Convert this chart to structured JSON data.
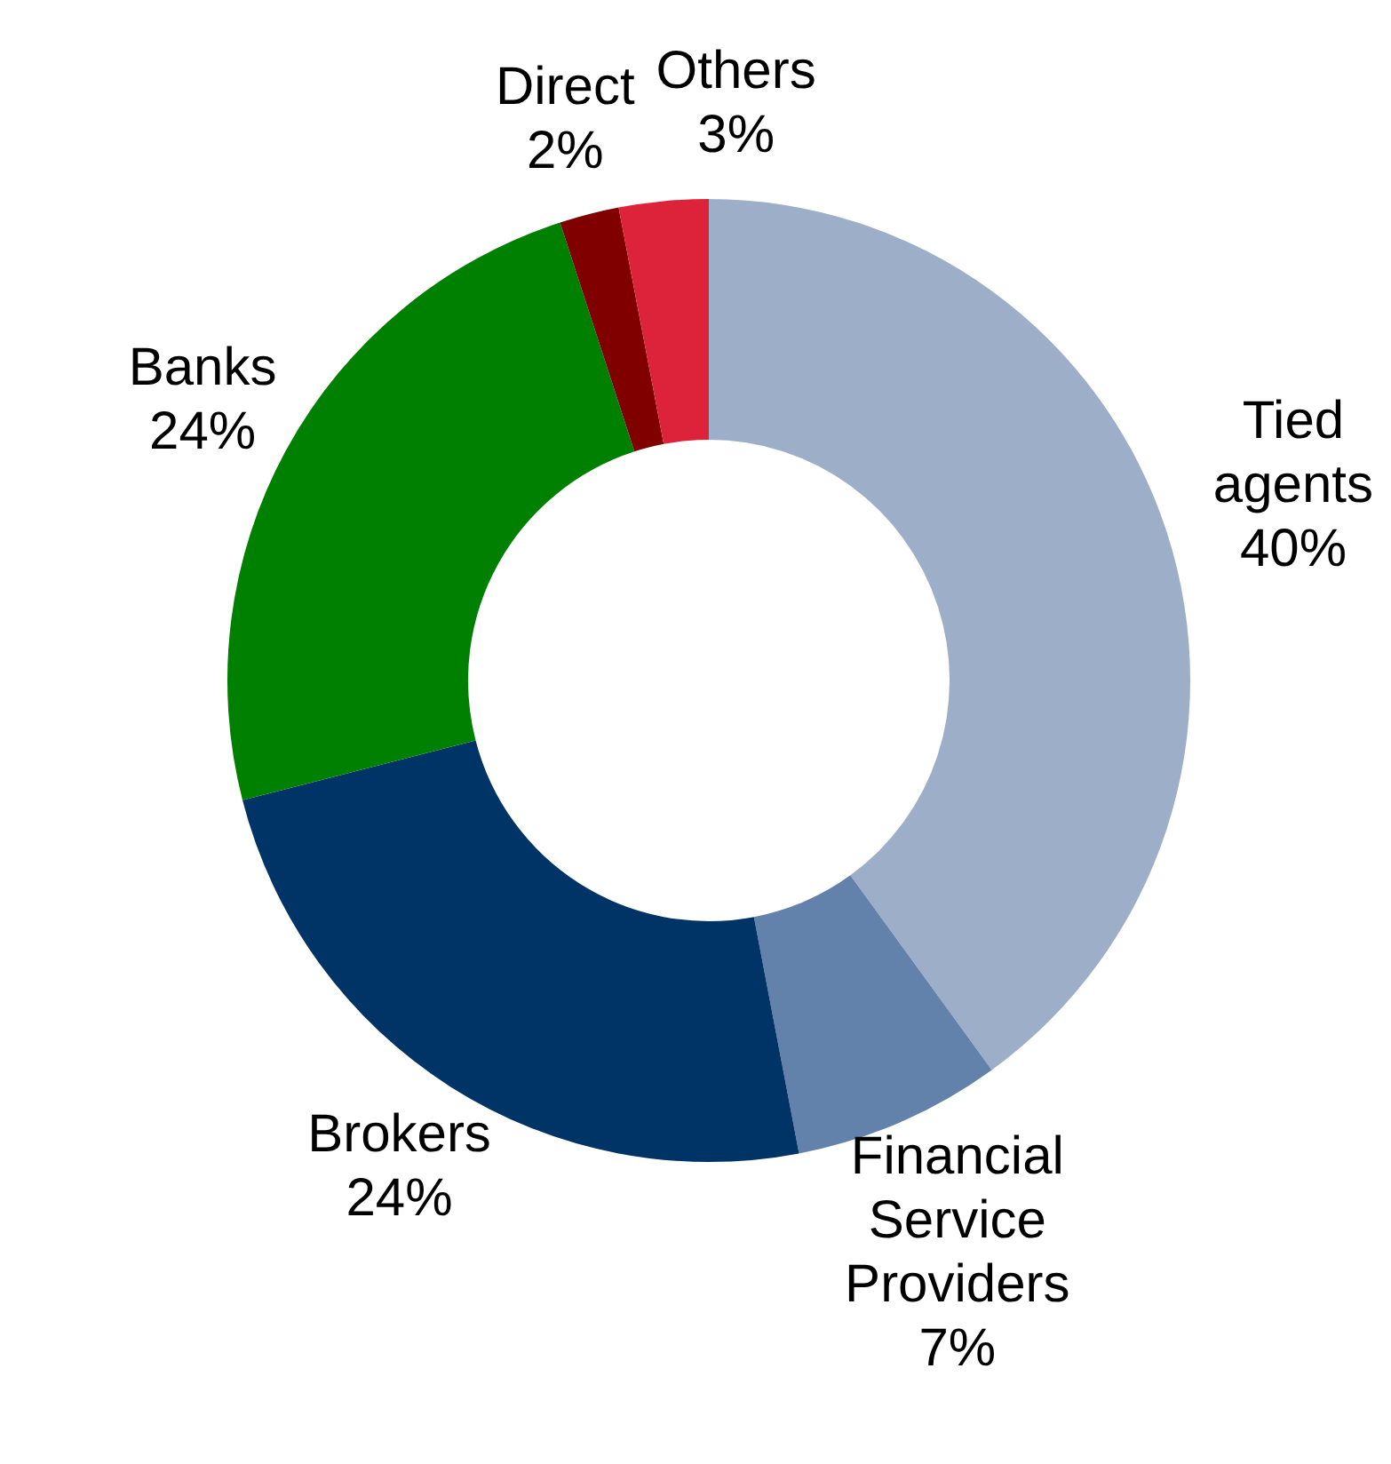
{
  "chart_data": {
    "type": "donut",
    "categories": [
      "Tied agents",
      "Financial Service Providers",
      "Brokers",
      "Banks",
      "Direct",
      "Others"
    ],
    "values": [
      40,
      7,
      24,
      24,
      2,
      3
    ],
    "colors": [
      "#9dafc8",
      "#6282ab",
      "#003366",
      "#008000",
      "#800000",
      "#dc2339"
    ],
    "value_labels": [
      "40%",
      "7%",
      "24%",
      "24%",
      "2%",
      "3%"
    ],
    "legend": false
  }
}
